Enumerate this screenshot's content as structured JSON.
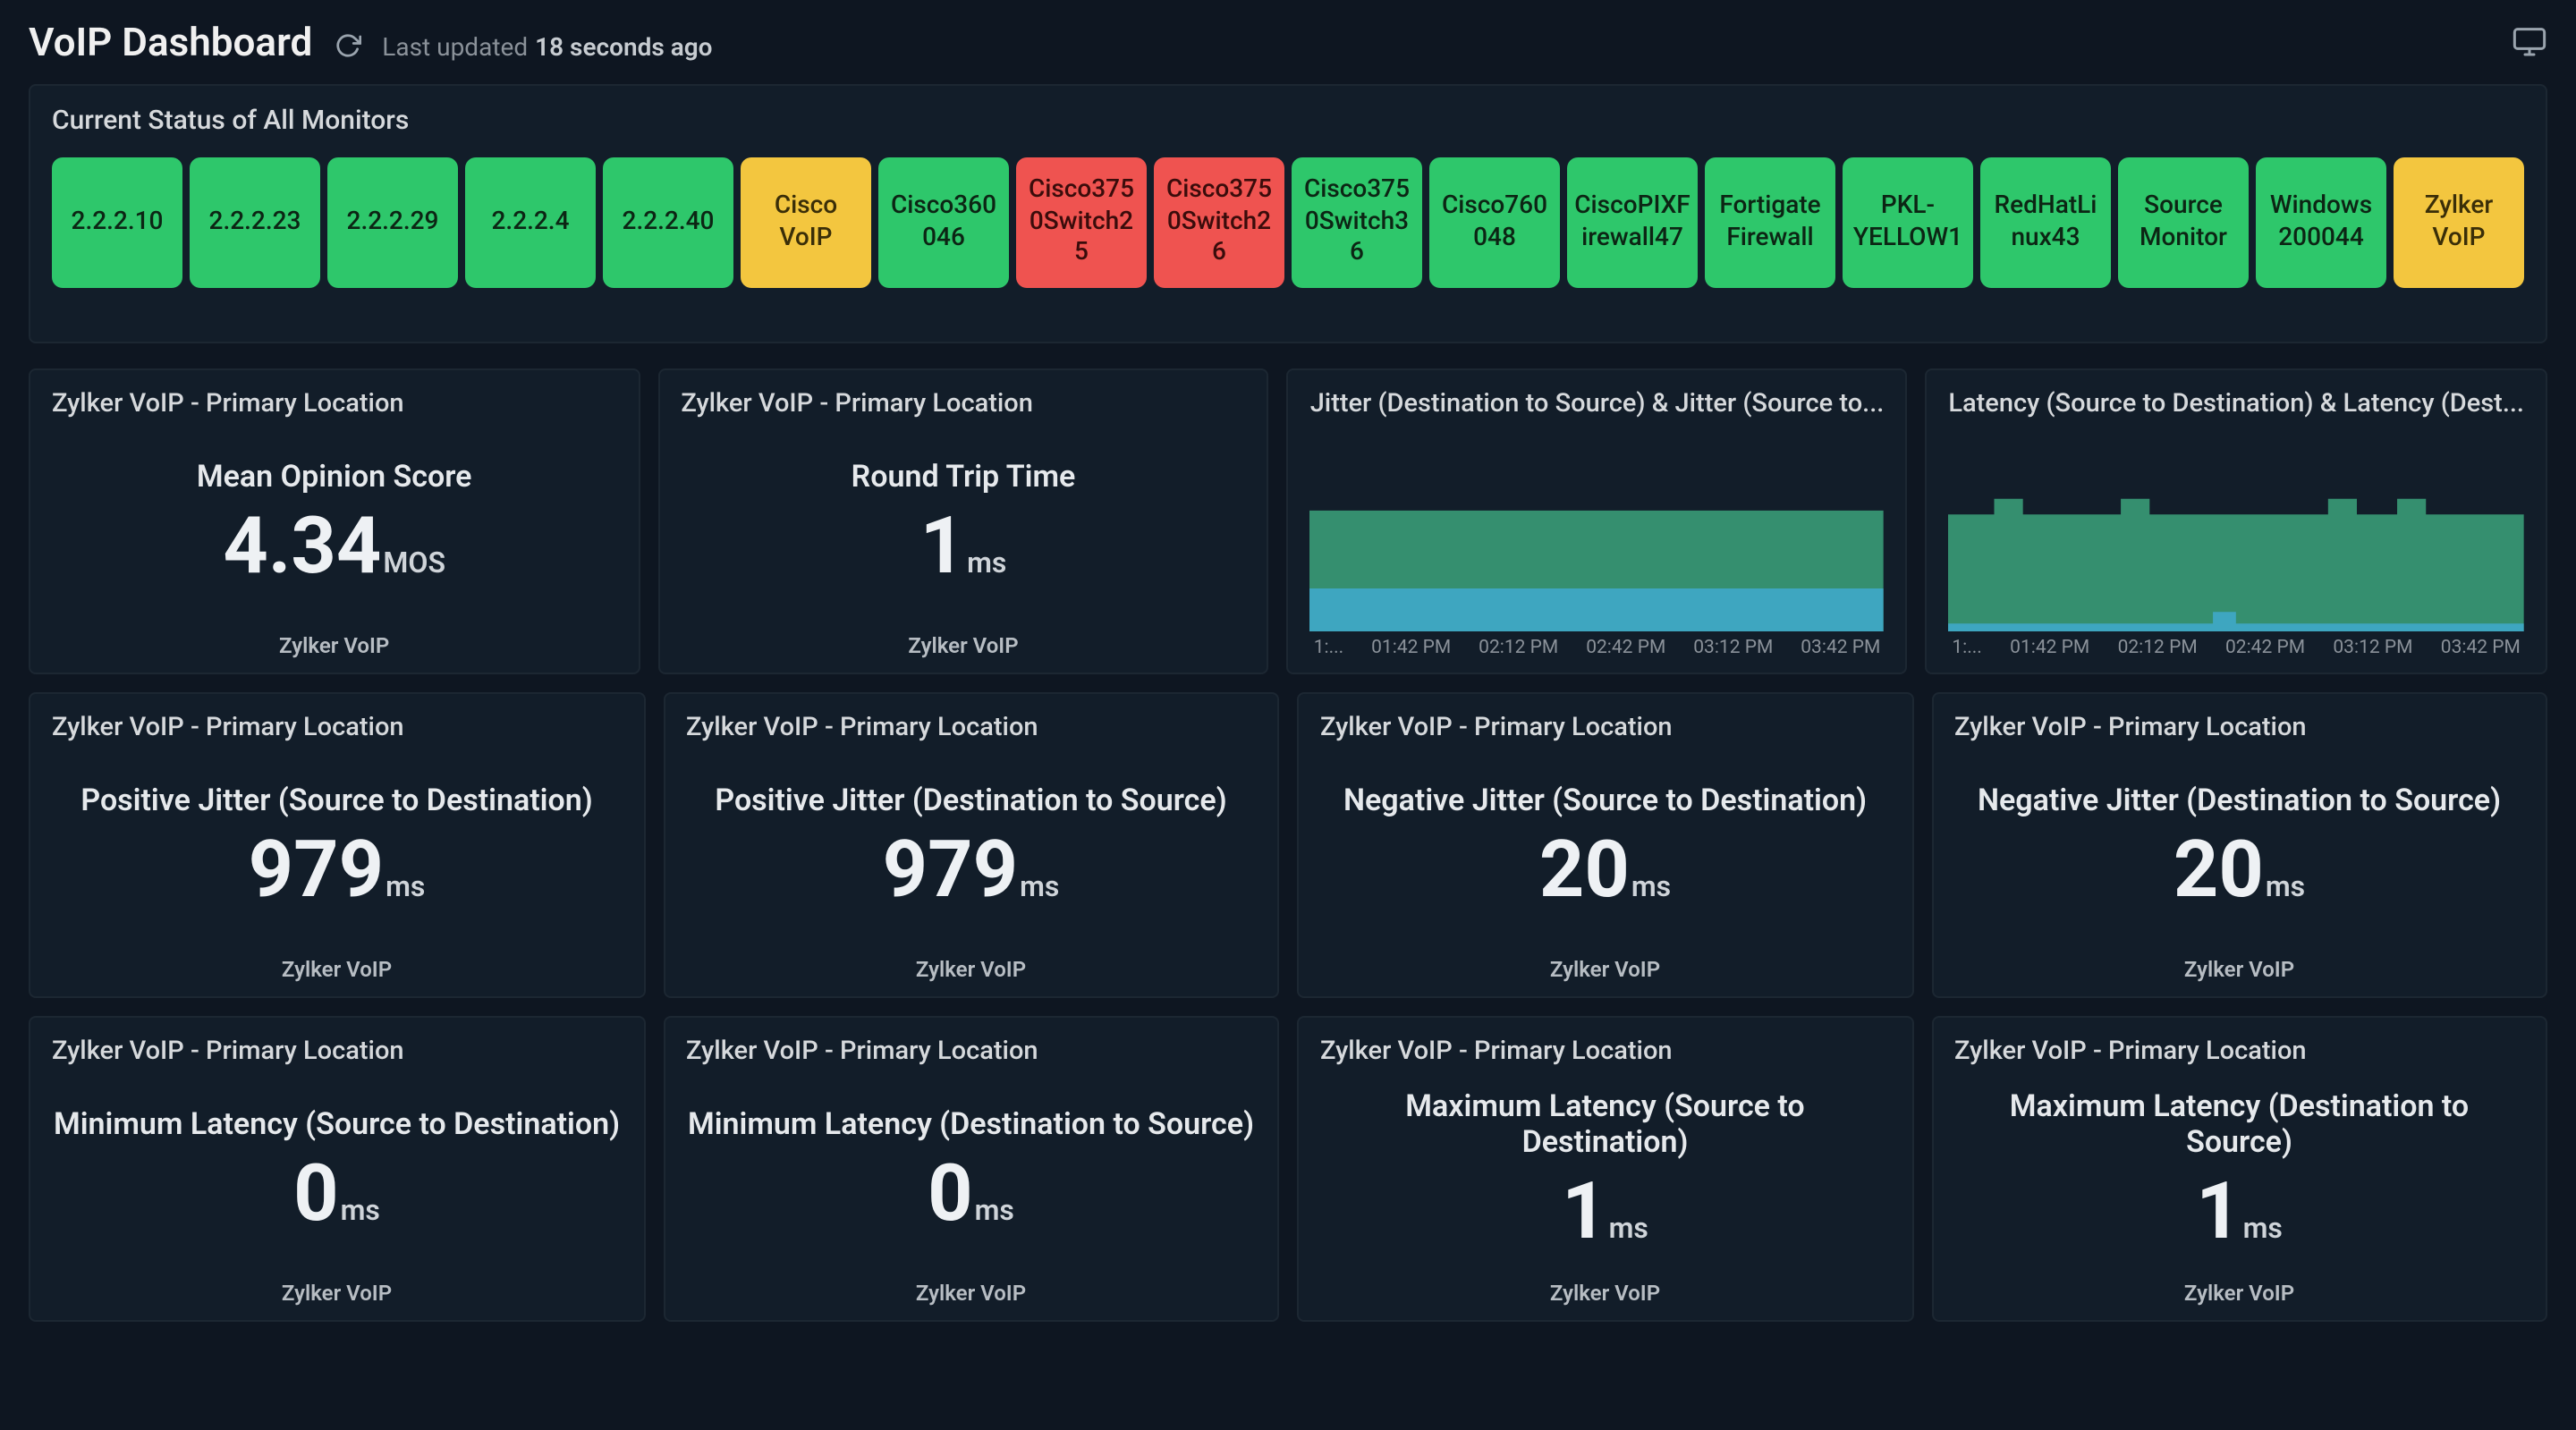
{
  "header": {
    "title": "VoIP Dashboard",
    "last_updated_label": "Last updated",
    "last_updated_time": "18 seconds ago"
  },
  "status_panel": {
    "title": "Current Status of All Monitors",
    "colors": {
      "green": "#2ec76b",
      "yellow": "#f3c63f",
      "red": "#ef5350"
    },
    "monitors": [
      {
        "label": "2.2.2.10",
        "status": "green"
      },
      {
        "label": "2.2.2.23",
        "status": "green"
      },
      {
        "label": "2.2.2.29",
        "status": "green"
      },
      {
        "label": "2.2.2.4",
        "status": "green"
      },
      {
        "label": "2.2.2.40",
        "status": "green"
      },
      {
        "label": "Cisco VoIP",
        "status": "yellow"
      },
      {
        "label": "Cisco360046",
        "status": "green"
      },
      {
        "label": "Cisco3750Switch25",
        "status": "red"
      },
      {
        "label": "Cisco3750Switch26",
        "status": "red"
      },
      {
        "label": "Cisco3750Switch36",
        "status": "green"
      },
      {
        "label": "Cisco760048",
        "status": "green"
      },
      {
        "label": "CiscoPIXFirewall47",
        "status": "green"
      },
      {
        "label": "Fortigate Firewall",
        "status": "green"
      },
      {
        "label": "PKL-YELLOW1",
        "status": "green"
      },
      {
        "label": "RedHatLinux43",
        "status": "green"
      },
      {
        "label": "Source Monitor",
        "status": "green"
      },
      {
        "label": "Windows 200044",
        "status": "green"
      },
      {
        "label": "Zylker VoIP",
        "status": "yellow"
      }
    ]
  },
  "charts": {
    "time_labels": [
      "1:...",
      "01:42 PM",
      "02:12 PM",
      "02:42 PM",
      "03:12 PM",
      "03:42 PM"
    ],
    "chart1": {
      "title": "Jitter (Destination to Source) & Jitter (Source to...",
      "type": "area-stacked",
      "series": [
        {
          "color": "#3a9c77",
          "baseline": 0.0,
          "height": 0.62,
          "bumps": []
        },
        {
          "color": "#3fa9c9",
          "baseline": 0.0,
          "height": 0.22,
          "bumps": []
        }
      ],
      "background": "#121d29"
    },
    "chart2": {
      "title": "Latency (Source to Destination) & Latency (Dest...",
      "type": "area-stacked",
      "series": [
        {
          "color": "#3a9c77",
          "baseline": 0.0,
          "height": 0.6,
          "bumps": [
            {
              "x": 0.08,
              "w": 0.05,
              "h": 0.08
            },
            {
              "x": 0.3,
              "w": 0.05,
              "h": 0.08
            },
            {
              "x": 0.66,
              "w": 0.05,
              "h": 0.08
            },
            {
              "x": 0.78,
              "w": 0.05,
              "h": 0.08
            }
          ]
        },
        {
          "color": "#3fa9c9",
          "baseline": 0.0,
          "height": 0.04,
          "bumps": [
            {
              "x": 0.46,
              "w": 0.04,
              "h": 0.06
            }
          ]
        }
      ],
      "background": "#121d29"
    }
  },
  "metric_cards": {
    "row1": [
      {
        "title": "Zylker VoIP - Primary Location",
        "label": "Mean Opinion Score",
        "value": "4.34",
        "unit": "MOS",
        "footer": "Zylker VoIP"
      },
      {
        "title": "Zylker VoIP - Primary Location",
        "label": "Round Trip Time",
        "value": "1",
        "unit": "ms",
        "footer": "Zylker VoIP"
      }
    ],
    "row2": [
      {
        "title": "Zylker VoIP - Primary Location",
        "label": "Positive Jitter (Source to Destination)",
        "value": "979",
        "unit": "ms",
        "footer": "Zylker VoIP"
      },
      {
        "title": "Zylker VoIP - Primary Location",
        "label": "Positive Jitter (Destination to Source)",
        "value": "979",
        "unit": "ms",
        "footer": "Zylker VoIP"
      },
      {
        "title": "Zylker VoIP - Primary Location",
        "label": "Negative Jitter (Source to Destination)",
        "value": "20",
        "unit": "ms",
        "footer": "Zylker VoIP"
      },
      {
        "title": "Zylker VoIP - Primary Location",
        "label": "Negative Jitter (Destination to Source)",
        "value": "20",
        "unit": "ms",
        "footer": "Zylker VoIP"
      }
    ],
    "row3": [
      {
        "title": "Zylker VoIP - Primary Location",
        "label": "Minimum Latency (Source to Destination)",
        "value": "0",
        "unit": "ms",
        "footer": "Zylker VoIP"
      },
      {
        "title": "Zylker VoIP - Primary Location",
        "label": "Minimum Latency (Destination to Source)",
        "value": "0",
        "unit": "ms",
        "footer": "Zylker VoIP"
      },
      {
        "title": "Zylker VoIP - Primary Location",
        "label": "Maximum Latency (Source to Destination)",
        "value": "1",
        "unit": "ms",
        "footer": "Zylker VoIP"
      },
      {
        "title": "Zylker VoIP - Primary Location",
        "label": "Maximum Latency (Destination to Source)",
        "value": "1",
        "unit": "ms",
        "footer": "Zylker VoIP"
      }
    ]
  }
}
